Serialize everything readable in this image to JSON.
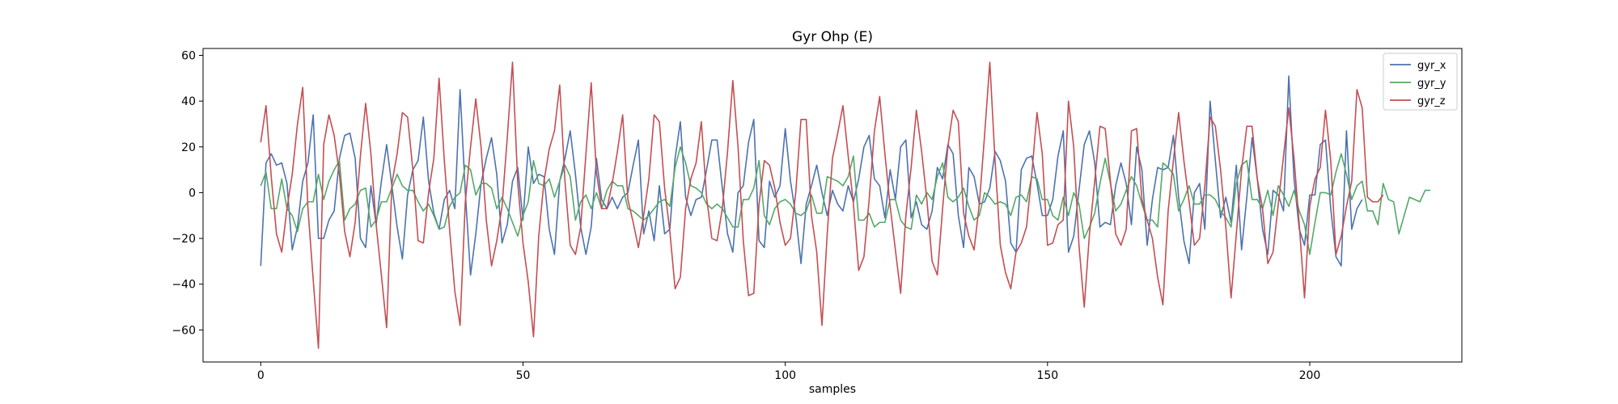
{
  "chart_data": {
    "type": "line",
    "title": "Gyr Ohp (E)",
    "xlabel": "samples",
    "ylabel": "",
    "xlim": [
      -11,
      229
    ],
    "ylim": [
      -74,
      63
    ],
    "xticks": [
      0,
      50,
      100,
      150,
      200
    ],
    "yticks": [
      -60,
      -40,
      -20,
      0,
      20,
      40,
      60
    ],
    "grid": false,
    "legend_position": "top-right",
    "series": [
      {
        "name": "gyr_x",
        "color": "#4c72b0",
        "values": [
          -32,
          13,
          17,
          12,
          13,
          4,
          -25,
          -15,
          5,
          13,
          34,
          -20,
          -20,
          -12,
          -8,
          15,
          25,
          26,
          15,
          -20,
          -24,
          3,
          -14,
          5,
          21,
          3,
          -15,
          -29,
          -1,
          10,
          14,
          33,
          5,
          -9,
          -16,
          -3,
          1,
          -7,
          45,
          0,
          -36,
          -18,
          4,
          15,
          24,
          8,
          -22,
          -14,
          5,
          11,
          -12,
          20,
          4,
          8,
          7,
          -16,
          -27,
          5,
          15,
          27,
          8,
          -15,
          -27,
          -15,
          15,
          -3,
          -7,
          -2,
          -7,
          -2,
          0,
          12,
          23,
          -18,
          -8,
          -21,
          3,
          -18,
          -16,
          15,
          31,
          -2,
          -10,
          -3,
          -2,
          10,
          23,
          23,
          2,
          -18,
          -26,
          0,
          3,
          22,
          32,
          -21,
          -24,
          5,
          -2,
          3,
          28,
          5,
          -10,
          -31,
          -5,
          3,
          12,
          0,
          -10,
          1,
          -5,
          -8,
          3,
          -4,
          6,
          20,
          25,
          6,
          3,
          -11,
          10,
          -3,
          20,
          23,
          -11,
          -4,
          -14,
          -16,
          -8,
          11,
          6,
          21,
          17,
          -10,
          -24,
          11,
          7,
          -5,
          -4,
          2,
          18,
          14,
          5,
          -22,
          -26,
          10,
          15,
          16,
          4,
          -10,
          -10,
          -3,
          16,
          27,
          -26,
          -19,
          1,
          21,
          27,
          13,
          -15,
          -13,
          -14,
          3,
          13,
          4,
          -14,
          20,
          10,
          -23,
          -3,
          11,
          10,
          11,
          25,
          -2,
          -21,
          -31,
          0,
          4,
          -16,
          40,
          14,
          -11,
          -2,
          -13,
          12,
          -25,
          -2,
          24,
          6,
          -16,
          -27,
          1,
          -1,
          -8,
          51,
          6,
          -16,
          -23,
          -1,
          -1,
          21,
          23,
          -7,
          -28,
          -32,
          27,
          -16,
          -7,
          -3
        ]
      },
      {
        "name": "gyr_y",
        "color": "#55a868",
        "values": [
          3,
          9,
          -7,
          -7,
          6,
          -7,
          -10,
          -17,
          -7,
          -4,
          -4,
          8,
          -3,
          5,
          10,
          14,
          -12,
          -7,
          -5,
          1,
          2,
          -15,
          -12,
          -4,
          -4,
          2,
          8,
          3,
          1,
          1,
          -4,
          -8,
          -5,
          -10,
          -16,
          -15,
          -6,
          -2,
          0,
          12,
          10,
          -1,
          4,
          4,
          2,
          -7,
          -2,
          -7,
          -13,
          -19,
          -10,
          -4,
          14,
          4,
          3,
          6,
          -2,
          5,
          12,
          7,
          -12,
          -4,
          -1,
          -7,
          0,
          -7,
          1,
          5,
          3,
          3,
          -7,
          -8,
          -10,
          -12,
          -10,
          -7,
          -4,
          -3,
          -6,
          11,
          20,
          13,
          3,
          2,
          0,
          -5,
          -7,
          -5,
          -7,
          -11,
          -15,
          -15,
          -3,
          -3,
          2,
          14,
          -10,
          -14,
          -7,
          -4,
          -3,
          -5,
          -9,
          -10,
          -8,
          -1,
          -9,
          -9,
          7,
          6,
          5,
          3,
          7,
          16,
          -12,
          -12,
          -9,
          -15,
          -13,
          -13,
          -3,
          -3,
          -12,
          -15,
          -16,
          -1,
          -5,
          0,
          -3,
          7,
          13,
          -2,
          -4,
          -2,
          2,
          -6,
          -12,
          -10,
          0,
          -2,
          -5,
          -4,
          -5,
          -10,
          -2,
          -1,
          -4,
          7,
          6,
          -3,
          -3,
          -10,
          -12,
          -2,
          -10,
          0,
          -5,
          -20,
          -15,
          -9,
          4,
          15,
          4,
          -8,
          -5,
          1,
          7,
          3,
          -5,
          -12,
          -12,
          -15,
          13,
          11,
          8,
          -8,
          -3,
          3,
          -5,
          -5,
          -1,
          -1,
          -3,
          -8,
          -11,
          -15,
          4,
          12,
          14,
          -3,
          -3,
          -7,
          1,
          -10,
          3,
          -1,
          -6,
          1,
          -8,
          -14,
          -27,
          -13,
          0,
          0,
          -1,
          9,
          17,
          8,
          -3,
          3,
          5,
          -8,
          -8,
          -14,
          4,
          -3,
          -4,
          -18,
          -10,
          -2,
          -3,
          -4,
          1,
          1
        ]
      },
      {
        "name": "gyr_z",
        "color": "#c44e52",
        "values": [
          22,
          38,
          7,
          -18,
          -26,
          -7,
          8,
          30,
          46,
          -7,
          -38,
          -68,
          21,
          34,
          25,
          8,
          -17,
          -28,
          -13,
          16,
          39,
          17,
          -14,
          -36,
          -59,
          4,
          17,
          35,
          33,
          10,
          -21,
          -22,
          0,
          15,
          50,
          14,
          -16,
          -43,
          -58,
          -4,
          20,
          41,
          20,
          -12,
          -32,
          -21,
          -6,
          24,
          57,
          4,
          -22,
          -39,
          -63,
          -19,
          5,
          19,
          27,
          47,
          5,
          -23,
          -27,
          -15,
          17,
          48,
          9,
          -7,
          -7,
          4,
          18,
          34,
          -3,
          -13,
          -24,
          -10,
          6,
          34,
          31,
          2,
          -17,
          -42,
          -37,
          -7,
          6,
          13,
          31,
          -2,
          -20,
          -21,
          -7,
          18,
          49,
          20,
          -21,
          -45,
          -44,
          -5,
          14,
          12,
          2,
          -13,
          -23,
          -20,
          0,
          32,
          32,
          -10,
          -26,
          -58,
          -18,
          15,
          26,
          38,
          16,
          -5,
          -34,
          -28,
          -3,
          27,
          42,
          17,
          -6,
          -25,
          -44,
          -10,
          11,
          36,
          18,
          -3,
          -30,
          -36,
          -7,
          20,
          36,
          31,
          -9,
          -19,
          -25,
          -5,
          25,
          57,
          14,
          -23,
          -35,
          -42,
          -26,
          -22,
          -15,
          8,
          35,
          17,
          -23,
          -22,
          -14,
          -12,
          40,
          20,
          -23,
          -50,
          -18,
          5,
          29,
          28,
          5,
          -18,
          -23,
          -16,
          27,
          28,
          -3,
          -12,
          -20,
          -37,
          -49,
          -8,
          14,
          35,
          14,
          -4,
          -23,
          -20,
          3,
          33,
          29,
          10,
          -15,
          -46,
          -18,
          10,
          29,
          29,
          6,
          -7,
          -31,
          -26,
          -5,
          16,
          37,
          15,
          -14,
          -46,
          -6,
          6,
          11,
          36,
          14,
          -27,
          -19,
          -6,
          5,
          45,
          37,
          -2,
          -4,
          -4,
          -1
        ]
      }
    ]
  }
}
